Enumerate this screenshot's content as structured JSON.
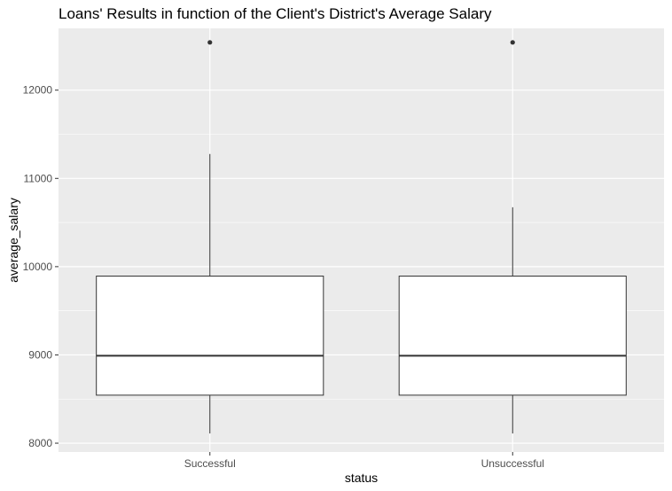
{
  "chart_data": {
    "type": "box",
    "title": "Loans' Results in function of the Client's District's Average Salary",
    "xlabel": "status",
    "ylabel": "average_salary",
    "categories": [
      "Successful",
      "Unsuccessful"
    ],
    "y_ticks": [
      8000,
      9000,
      10000,
      11000,
      12000
    ],
    "y_tick_labels": [
      "8000",
      "9000",
      "10000",
      "11000",
      "12000"
    ],
    "ylim": [
      7900,
      12700
    ],
    "grid": true,
    "legend": "none",
    "boxes": [
      {
        "category": "Successful",
        "whisker_low": 8110,
        "q1": 8544,
        "median": 8991,
        "q3": 9893,
        "whisker_high": 11277,
        "outliers": [
          12541
        ]
      },
      {
        "category": "Unsuccessful",
        "whisker_low": 8110,
        "q1": 8544,
        "median": 8991,
        "q3": 9893,
        "whisker_high": 10673,
        "outliers": [
          12541
        ]
      }
    ],
    "colors": {
      "panel": "#ebebeb",
      "grid": "#ffffff",
      "box_fill": "#ffffff",
      "box_stroke": "#333333",
      "tick_text": "#4d4d4d"
    }
  }
}
